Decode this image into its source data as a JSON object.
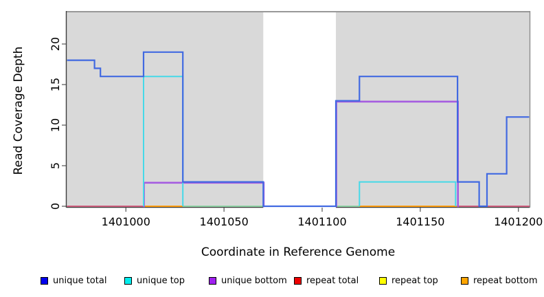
{
  "chart_data": {
    "type": "line",
    "subtype": "step-coverage-plot",
    "title": "",
    "xlabel": "Coordinate in Reference Genome",
    "ylabel": "Read Coverage Depth",
    "xlim": [
      1400970,
      1401206
    ],
    "ylim": [
      0,
      24
    ],
    "x_ticks": [
      "1401000",
      "1401050",
      "1401100",
      "1401150",
      "1401200"
    ],
    "y_ticks": [
      "0",
      "5",
      "10",
      "15",
      "20"
    ],
    "panel_color": "#d9d9d9",
    "gap_region": {
      "from": 1401070,
      "to": 1401107,
      "color": "#ffffff"
    },
    "series": [
      {
        "name": "unique total",
        "line_color": "#4169e1",
        "x_end": 1401205.5,
        "steps": [
          [
            1400970,
            18
          ],
          [
            1400984,
            17
          ],
          [
            1400987,
            16
          ],
          [
            1401009,
            19
          ],
          [
            1401029,
            3
          ],
          [
            1401070,
            0
          ],
          [
            1401107,
            13
          ],
          [
            1401119,
            16
          ],
          [
            1401169,
            3
          ],
          [
            1401180,
            0
          ],
          [
            1401184,
            4
          ],
          [
            1401194,
            11
          ]
        ]
      },
      {
        "name": "unique top",
        "line_color": "#45d9e8",
        "boxes": [
          {
            "from": 1401009,
            "to": 1401029,
            "depth": 16
          },
          {
            "from": 1401119,
            "to": 1401168,
            "depth": 3
          }
        ]
      },
      {
        "name": "unique bottom",
        "line_color": "#a55ce0",
        "boxes": [
          {
            "from": 1401009,
            "to": 1401070,
            "depth": 3
          },
          {
            "from": 1401107,
            "to": 1401169,
            "depth": 13
          }
        ]
      },
      {
        "name": "repeat total",
        "line_color": "#d06080",
        "value": 0
      },
      {
        "name": "repeat top",
        "line_color": "#ffe000",
        "value": 0
      },
      {
        "name": "repeat bottom",
        "line_color": "#ff9e10",
        "value": 0
      }
    ],
    "zero_line_segments": [
      {
        "from": 1400970,
        "to": 1401009,
        "color": "#d06080"
      },
      {
        "from": 1401009,
        "to": 1401029,
        "color": "#ff9e10"
      },
      {
        "from": 1401029,
        "to": 1401070,
        "color": "#8fd3a5"
      },
      {
        "from": 1401107,
        "to": 1401119,
        "color": "#8fd3a5"
      },
      {
        "from": 1401119,
        "to": 1401169,
        "color": "#ff9e10"
      },
      {
        "from": 1401169,
        "to": 1401180,
        "color": "#d06080"
      },
      {
        "from": 1401184,
        "to": 1401206,
        "color": "#d06080"
      }
    ]
  },
  "legend": {
    "items": [
      {
        "label": "unique total",
        "color": "#0000EE"
      },
      {
        "label": "unique top",
        "color": "#00EEEE"
      },
      {
        "label": "unique bottom",
        "color": "#A020F0"
      },
      {
        "label": "repeat total",
        "color": "#EE0000"
      },
      {
        "label": "repeat top",
        "color": "#FFFF00"
      },
      {
        "label": "repeat bottom",
        "color": "#FFA500"
      }
    ]
  }
}
